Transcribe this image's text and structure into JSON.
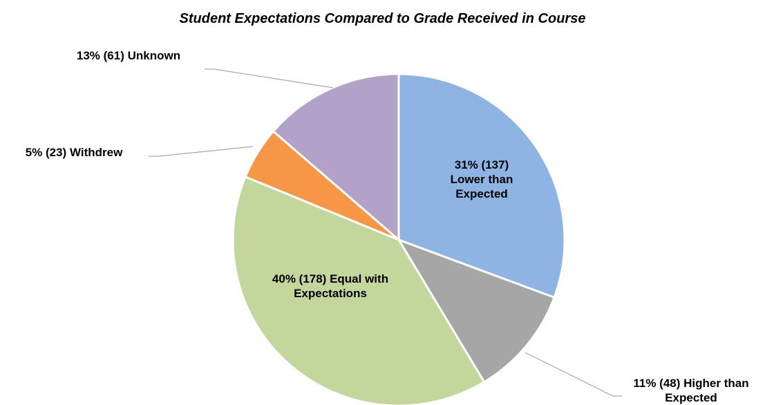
{
  "chart_data": {
    "type": "pie",
    "title": "Student Expectations Compared to Grade Received in Course",
    "categories": [
      "Lower than Expected",
      "Higher than Expected",
      "Equal with Expectations",
      "Withdrew",
      "Unknown"
    ],
    "values": [
      137,
      48,
      178,
      23,
      61
    ],
    "value_labels": [
      "31% (137)",
      "11% (48)",
      "40% (178)",
      "5% (23)",
      "13% (61)"
    ],
    "colors": [
      "#8eb4e3",
      "#a6a6a6",
      "#c3d69b",
      "#f79646",
      "#b3a2c7"
    ]
  }
}
